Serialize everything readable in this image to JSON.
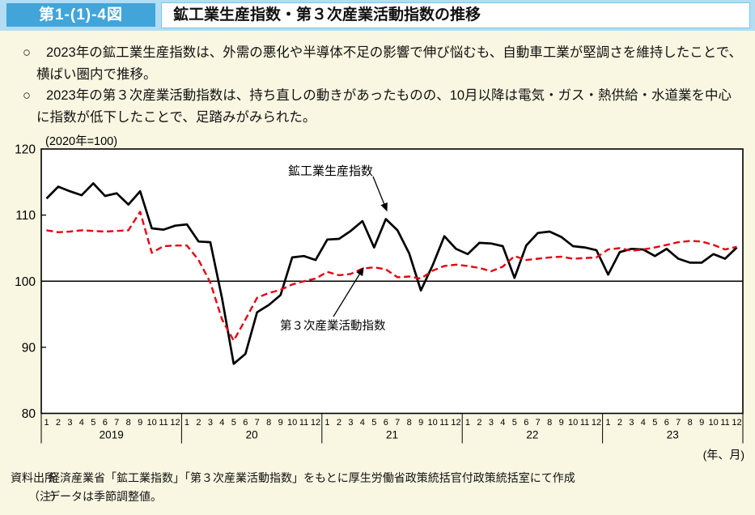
{
  "header": {
    "figure_label": "第1-(1)-4図",
    "title": "鉱工業生産指数・第３次産業活動指数の推移"
  },
  "bullets": [
    {
      "marker": "○",
      "text": "2023年の鉱工業生産指数は、外需の悪化や半導体不足の影響で伸び悩むも、自動車工業が堅調さを維持したことで、横ばい圏内で推移。"
    },
    {
      "marker": "○",
      "text": "2023年の第３次産業活動指数は、持ち直しの動きがあったものの、10月以降は電気・ガス・熱供給・水道業を中心に指数が低下したことで、足踏みがみられた。"
    }
  ],
  "chart_data": {
    "type": "line",
    "unit_label": "(2020年=100)",
    "axis_note": "(年、月)",
    "ylim": [
      80,
      120
    ],
    "yticks": [
      120,
      110,
      100,
      90,
      80
    ],
    "reference_line": 100,
    "grid": false,
    "years": [
      "2019",
      "20",
      "21",
      "22",
      "23"
    ],
    "months": [
      "1",
      "2",
      "3",
      "4",
      "5",
      "6",
      "7",
      "8",
      "9",
      "10",
      "11",
      "12"
    ],
    "series": [
      {
        "name": "鉱工業生産指数",
        "color": "#000000",
        "style": "solid",
        "values": [
          112.5,
          114.3,
          113.6,
          113.0,
          114.8,
          112.9,
          113.3,
          111.6,
          113.6,
          108.0,
          107.8,
          108.4,
          108.6,
          106.0,
          105.9,
          97.4,
          87.5,
          89.0,
          95.3,
          96.4,
          97.9,
          103.6,
          103.8,
          103.2,
          106.3,
          106.4,
          107.6,
          109.1,
          105.1,
          109.4,
          107.7,
          104.2,
          98.6,
          102.4,
          106.8,
          104.9,
          104.1,
          105.8,
          105.7,
          105.3,
          100.5,
          105.4,
          107.3,
          107.5,
          106.7,
          105.3,
          105.1,
          104.7,
          101.0,
          104.4,
          104.9,
          104.8,
          103.8,
          104.9,
          103.4,
          102.8,
          102.8,
          104.1,
          103.4,
          105.1
        ]
      },
      {
        "name": "第３次産業活動指数",
        "color": "#e60012",
        "style": "dashed",
        "values": [
          107.7,
          107.4,
          107.5,
          107.7,
          107.6,
          107.5,
          107.6,
          107.7,
          110.5,
          104.3,
          105.3,
          105.4,
          105.4,
          103.2,
          99.8,
          94.2,
          91.0,
          94.2,
          97.5,
          98.2,
          98.7,
          99.5,
          100.0,
          100.4,
          101.4,
          100.9,
          101.1,
          101.9,
          102.1,
          101.8,
          100.6,
          100.7,
          100.4,
          101.6,
          102.3,
          102.5,
          102.3,
          102.0,
          101.5,
          102.2,
          103.8,
          103.2,
          103.4,
          103.6,
          103.7,
          103.4,
          103.5,
          103.6,
          104.8,
          105.0,
          104.6,
          104.8,
          105.1,
          105.5,
          105.9,
          106.1,
          106.0,
          105.5,
          104.8,
          105.2
        ]
      }
    ],
    "legend_position": "annotated-inline"
  },
  "footer": {
    "source_label": "資料出所",
    "source_text": "経済産業省「鉱工業指数」「第３次産業活動指数」をもとに厚生労働省政策統括官付政策統括室にて作成",
    "note_label": "（注）",
    "note_text": "データは季節調整値。"
  },
  "colors": {
    "page_background": "#f9f7e1",
    "header_band": "#b2ddf3",
    "figure_label_box": "#41a5da",
    "title_box_border": "#7ec6e9",
    "iip_line": "#000000",
    "tertiary_line": "#e60012"
  }
}
